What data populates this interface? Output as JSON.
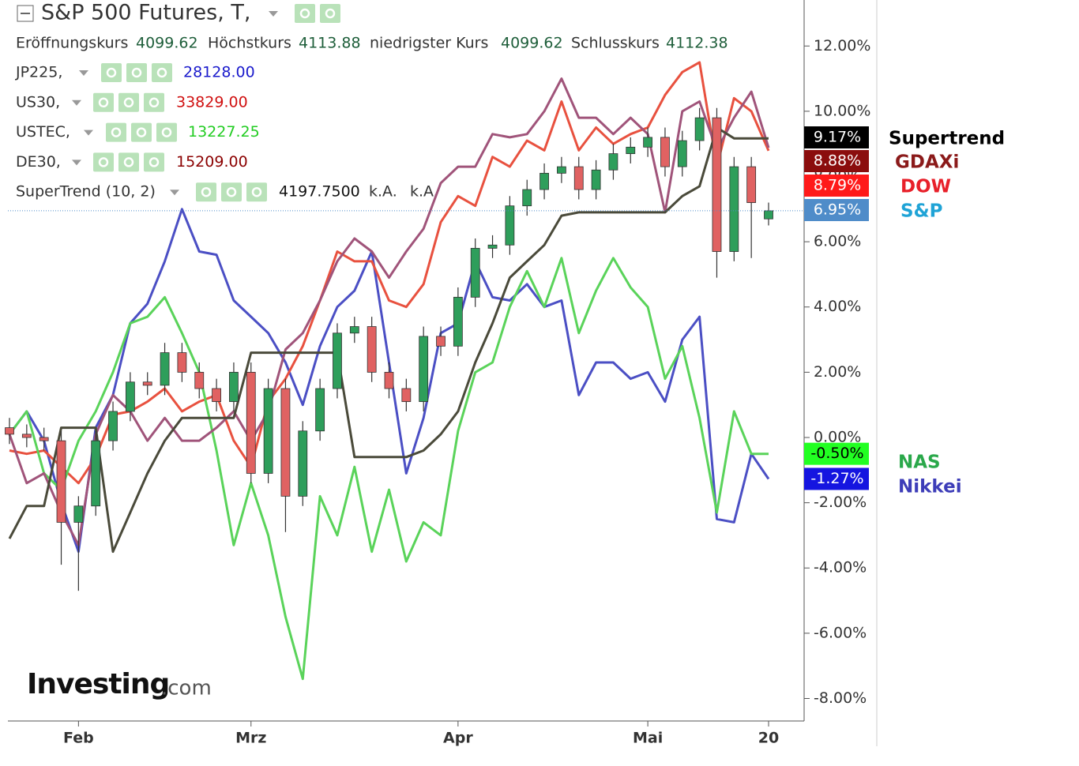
{
  "header": {
    "title": "S&P 500 Futures, T,",
    "ohlc": [
      {
        "label": "Eröffnungskurs",
        "value": "4099.62"
      },
      {
        "label": "Höchstkurs",
        "value": "4113.88"
      },
      {
        "label": "niedrigster Kurs",
        "value": "4099.62"
      },
      {
        "label": "Schlusskurs",
        "value": "4112.38"
      }
    ]
  },
  "watermark": {
    "brand": "Investing",
    "suffix": ".com"
  },
  "chart_data": {
    "type": "candlestick",
    "categories": [
      null,
      null,
      null,
      null,
      "Feb",
      null,
      null,
      null,
      null,
      null,
      null,
      null,
      null,
      null,
      "Mrz",
      null,
      null,
      null,
      null,
      null,
      null,
      null,
      null,
      null,
      null,
      null,
      "Apr",
      null,
      null,
      null,
      null,
      null,
      null,
      null,
      null,
      null,
      null,
      "Mai",
      null,
      null,
      null,
      null,
      null,
      null,
      "20"
    ],
    "ohlc": {
      "label": "S&P",
      "last_label": "6.95%",
      "color_up": "#2e9e5b",
      "color_down": "#e06262",
      "tag_color": "#4f8cc9",
      "label_color": "#1fa3d6",
      "open": [
        0.3,
        0.1,
        0.0,
        -0.1,
        -2.6,
        -2.1,
        -0.1,
        0.8,
        1.7,
        1.6,
        2.6,
        2.0,
        1.5,
        1.1,
        2.0,
        -1.1,
        1.5,
        -1.8,
        0.2,
        1.5,
        3.2,
        3.4,
        2.0,
        1.5,
        1.1,
        3.1,
        2.8,
        4.3,
        5.8,
        5.9,
        7.1,
        7.6,
        8.1,
        8.3,
        7.6,
        8.2,
        8.7,
        8.9,
        9.2,
        8.3,
        9.1,
        9.8,
        5.7,
        8.3,
        6.7
      ],
      "high": [
        0.6,
        0.4,
        0.3,
        0.2,
        -1.8,
        0.2,
        1.1,
        2.0,
        2.0,
        2.9,
        2.9,
        2.3,
        1.8,
        2.3,
        2.3,
        1.8,
        1.8,
        0.5,
        1.8,
        3.5,
        3.7,
        3.7,
        2.3,
        1.8,
        3.4,
        3.4,
        4.6,
        6.1,
        6.2,
        7.4,
        7.9,
        8.4,
        8.6,
        8.6,
        8.5,
        9.0,
        9.2,
        9.5,
        9.5,
        9.4,
        10.1,
        10.1,
        8.6,
        8.6,
        7.2
      ],
      "low": [
        -0.2,
        -0.3,
        -0.4,
        -3.9,
        -4.7,
        -2.4,
        -0.4,
        0.5,
        1.3,
        1.3,
        1.7,
        1.2,
        0.8,
        0.8,
        -1.4,
        -1.4,
        -2.9,
        -2.1,
        -0.1,
        1.2,
        2.9,
        1.7,
        1.2,
        0.8,
        0.8,
        2.5,
        2.5,
        4.0,
        5.5,
        5.6,
        6.8,
        7.3,
        7.8,
        7.3,
        7.3,
        7.9,
        8.4,
        8.6,
        8.0,
        8.0,
        8.8,
        4.9,
        5.4,
        5.5,
        6.5
      ],
      "close": [
        0.1,
        0.0,
        -0.1,
        -2.6,
        -2.1,
        -0.1,
        0.8,
        1.7,
        1.6,
        2.6,
        2.0,
        1.5,
        1.1,
        2.0,
        -1.1,
        1.5,
        -1.8,
        0.2,
        1.5,
        3.2,
        3.4,
        2.0,
        1.5,
        1.1,
        3.1,
        2.8,
        4.3,
        5.8,
        5.9,
        7.1,
        7.6,
        8.1,
        8.3,
        7.6,
        8.2,
        8.7,
        8.9,
        9.2,
        8.3,
        9.1,
        9.8,
        5.7,
        8.3,
        7.2,
        6.95
      ]
    },
    "series": [
      {
        "type": "line",
        "name": "JP225",
        "legend": "JP225,",
        "price": "28128.00",
        "label": "Nikkei",
        "last_label": "-1.27%",
        "color": "#4b4fc4",
        "price_color": "#1a1acc",
        "tag_color": "#1515e0",
        "label_color": "#3d3db8",
        "values": [
          0.1,
          0.8,
          -0.1,
          -2.0,
          -3.5,
          0.3,
          1.3,
          3.5,
          4.1,
          5.4,
          7.0,
          5.7,
          5.6,
          4.2,
          3.7,
          3.2,
          2.3,
          1.0,
          2.8,
          4.0,
          4.5,
          5.7,
          2.3,
          -1.1,
          0.6,
          3.2,
          3.5,
          5.4,
          4.3,
          4.2,
          4.7,
          4.0,
          4.2,
          1.3,
          2.3,
          2.3,
          1.8,
          2.0,
          1.1,
          3.0,
          3.7,
          -2.5,
          -2.6,
          -0.5,
          -1.27
        ]
      },
      {
        "type": "line",
        "name": "US30",
        "legend": "US30,",
        "price": "33829.00",
        "label": "DOW",
        "last_label": "8.79%",
        "color": "#e8513f",
        "price_color": "#d01010",
        "tag_color": "#ff1a1a",
        "label_color": "#e8202a",
        "values": [
          -0.4,
          -0.5,
          -0.4,
          -0.9,
          -1.4,
          -0.6,
          0.7,
          0.8,
          1.1,
          1.5,
          0.8,
          1.1,
          1.3,
          -0.1,
          -0.9,
          1.1,
          1.8,
          2.8,
          4.2,
          5.7,
          5.4,
          5.4,
          4.2,
          4.0,
          4.7,
          6.6,
          7.4,
          7.1,
          8.6,
          8.3,
          9.1,
          8.8,
          10.3,
          8.8,
          9.5,
          9.0,
          9.3,
          9.5,
          10.5,
          11.2,
          11.5,
          8.3,
          10.4,
          10.0,
          8.79
        ]
      },
      {
        "type": "line",
        "name": "USTEC",
        "legend": "USTEC,",
        "price": "13227.25",
        "label": "NAS",
        "last_label": "-0.50%",
        "color": "#5ad35a",
        "price_color": "#22cc22",
        "tag_color": "#22ff22",
        "label_color": "#2aa84a",
        "values": [
          0.1,
          0.8,
          -1.1,
          -1.6,
          -0.1,
          0.8,
          2.0,
          3.5,
          3.7,
          4.3,
          3.2,
          2.0,
          -0.4,
          -3.3,
          -1.4,
          -3.0,
          -5.5,
          -7.4,
          -1.8,
          -3.0,
          -0.9,
          -3.5,
          -1.6,
          -3.8,
          -2.6,
          -3.0,
          0.2,
          2.0,
          2.3,
          4.0,
          5.1,
          4.0,
          5.5,
          3.2,
          4.5,
          5.5,
          4.6,
          4.0,
          1.8,
          2.8,
          0.6,
          -2.3,
          0.8,
          -0.5,
          -0.5
        ]
      },
      {
        "type": "line",
        "name": "DE30",
        "legend": "DE30,",
        "price": "15209.00",
        "label": "GDAXi",
        "last_label": "8.88%",
        "color": "#a0547a",
        "price_color": "#8b0000",
        "tag_color": "#8b0d0d",
        "label_color": "#8b1a1a",
        "values": [
          0.1,
          -1.4,
          -1.1,
          -2.3,
          -3.3,
          0.1,
          1.3,
          0.8,
          -0.1,
          0.6,
          -0.1,
          -0.1,
          0.3,
          0.8,
          -0.1,
          0.8,
          2.7,
          3.2,
          4.2,
          5.4,
          6.1,
          5.7,
          4.9,
          5.7,
          6.4,
          7.8,
          8.3,
          8.3,
          9.3,
          9.2,
          9.3,
          10.0,
          11.0,
          9.8,
          9.8,
          9.3,
          9.8,
          9.3,
          6.9,
          10.0,
          10.3,
          8.8,
          9.8,
          10.6,
          8.88
        ]
      },
      {
        "type": "line",
        "name": "SuperTrend",
        "legend": "SuperTrend (10, 2)",
        "price": "4197.7500",
        "extra": [
          "k.A.",
          "k.A."
        ],
        "label": "Supertrend",
        "last_label": "9.17%",
        "color": "#4a4a3a",
        "price_color": "#111111",
        "tag_color": "#000000",
        "label_color": "#000000",
        "values": [
          -3.1,
          -2.1,
          -2.1,
          0.3,
          0.3,
          0.3,
          -3.5,
          -2.3,
          -1.1,
          -0.1,
          0.6,
          0.6,
          0.6,
          0.6,
          2.6,
          2.6,
          2.6,
          2.6,
          2.6,
          2.6,
          -0.6,
          -0.6,
          -0.6,
          -0.6,
          -0.4,
          0.1,
          0.8,
          2.3,
          3.5,
          4.9,
          5.4,
          5.9,
          6.8,
          6.9,
          6.9,
          6.9,
          6.9,
          6.9,
          6.9,
          7.4,
          7.7,
          9.5,
          9.17,
          9.17,
          9.17
        ]
      }
    ],
    "ylim": [
      -8.69,
      13.41
    ],
    "yticks": [
      {
        "value": 12,
        "label": "12.00%"
      },
      {
        "value": 10,
        "label": "10.00%"
      },
      {
        "value": 8,
        "label": "8.00%"
      },
      {
        "value": 6,
        "label": "6.00%"
      },
      {
        "value": 4,
        "label": "4.00%"
      },
      {
        "value": 2,
        "label": "2.00%"
      },
      {
        "value": 0,
        "label": "0.00%"
      },
      {
        "value": -2,
        "label": "-2.00%"
      },
      {
        "value": -4,
        "label": "-4.00%"
      },
      {
        "value": -6,
        "label": "-6.00%"
      },
      {
        "value": -8,
        "label": "-8.00%"
      }
    ]
  }
}
